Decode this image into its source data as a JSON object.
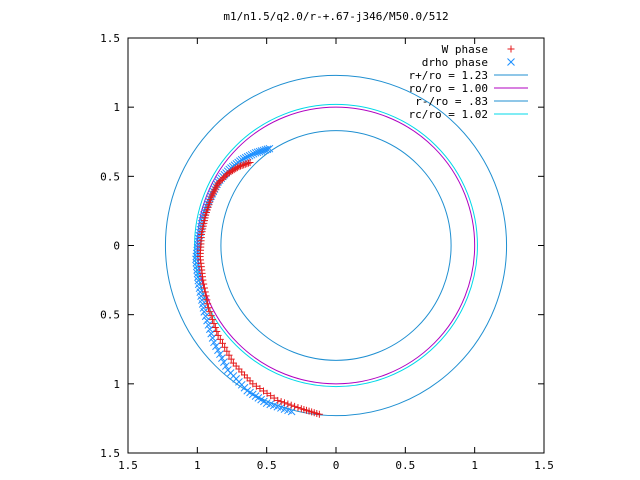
{
  "chart_data": {
    "type": "scatter",
    "title": "m1/n1.5/q2.0/r-+.67-j346/M50.0/512",
    "xlabel": "",
    "ylabel": "",
    "xlim": [
      -1.5,
      1.5
    ],
    "ylim": [
      -1.5,
      1.5
    ],
    "x_ticks": [
      -1.5,
      -1,
      -0.5,
      0,
      0.5,
      1,
      1.5
    ],
    "y_ticks": [
      -1.5,
      -1,
      -0.5,
      0,
      0.5,
      1,
      1.5
    ],
    "x_tick_labels": [
      "1.5",
      "1",
      "0.5",
      "0",
      "0.5",
      "1",
      "1.5"
    ],
    "y_tick_labels": [
      "1.5",
      "1",
      "0.5",
      "0",
      "0.5",
      "1",
      "1.5"
    ],
    "grid": false,
    "legend_position": "top-right",
    "series": [
      {
        "name": "W phase",
        "marker": "plus",
        "color": "#e41a1c",
        "points": [
          [
            -0.62,
            0.6
          ],
          [
            -0.7,
            0.57
          ],
          [
            -0.78,
            0.52
          ],
          [
            -0.85,
            0.45
          ],
          [
            -0.9,
            0.35
          ],
          [
            -0.94,
            0.22
          ],
          [
            -0.97,
            0.08
          ],
          [
            -0.98,
            -0.08
          ],
          [
            -0.96,
            -0.25
          ],
          [
            -0.92,
            -0.45
          ],
          [
            -0.85,
            -0.65
          ],
          [
            -0.74,
            -0.85
          ],
          [
            -0.6,
            -1.0
          ],
          [
            -0.42,
            -1.12
          ],
          [
            -0.25,
            -1.18
          ],
          [
            -0.12,
            -1.22
          ]
        ]
      },
      {
        "name": "drho phase",
        "marker": "cross",
        "color": "#1e90ff",
        "points": [
          [
            -0.48,
            0.7
          ],
          [
            -0.58,
            0.67
          ],
          [
            -0.68,
            0.62
          ],
          [
            -0.77,
            0.55
          ],
          [
            -0.85,
            0.46
          ],
          [
            -0.91,
            0.34
          ],
          [
            -0.96,
            0.2
          ],
          [
            -0.99,
            0.05
          ],
          [
            -1.01,
            -0.1
          ],
          [
            -0.99,
            -0.28
          ],
          [
            -0.95,
            -0.48
          ],
          [
            -0.88,
            -0.7
          ],
          [
            -0.78,
            -0.9
          ],
          [
            -0.64,
            -1.05
          ],
          [
            -0.5,
            -1.14
          ],
          [
            -0.32,
            -1.2
          ]
        ]
      },
      {
        "name": "r+/ro = 1.23",
        "type": "circle",
        "r": 1.23,
        "color": "#1f8fd1"
      },
      {
        "name": "ro/ro = 1.00",
        "type": "circle",
        "r": 1.0,
        "color": "#b000c0"
      },
      {
        "name": "r-/ro = .83",
        "type": "circle",
        "r": 0.83,
        "color": "#1f8fd1"
      },
      {
        "name": "rc/ro = 1.02",
        "type": "circle",
        "r": 1.02,
        "color": "#00d8e8"
      }
    ]
  }
}
